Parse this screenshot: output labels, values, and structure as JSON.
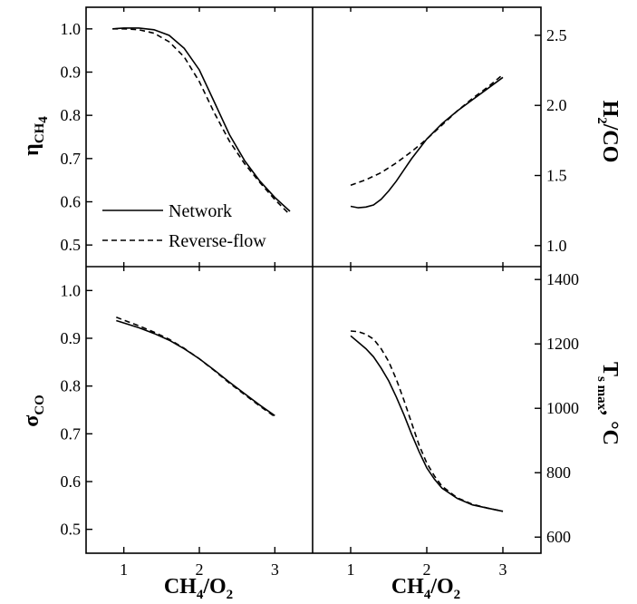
{
  "chart_data": [
    {
      "panel": "top-left",
      "type": "line",
      "ylabel_main": "η",
      "ylabel_sub": "CH",
      "ylabel_sub2": "4",
      "ylim": [
        0.45,
        1.05
      ],
      "yticks": [
        "0.5",
        "0.6",
        "0.7",
        "0.8",
        "0.9",
        "1.0"
      ],
      "series": [
        {
          "name": "Network",
          "style": "solid",
          "x": [
            0.85,
            1.0,
            1.2,
            1.4,
            1.6,
            1.8,
            2.0,
            2.2,
            2.4,
            2.6,
            2.8,
            3.0,
            3.2
          ],
          "y": [
            1.0,
            1.002,
            1.002,
            0.998,
            0.985,
            0.955,
            0.905,
            0.83,
            0.755,
            0.695,
            0.648,
            0.61,
            0.578
          ]
        },
        {
          "name": "Reverse-flow",
          "style": "dashed",
          "x": [
            0.85,
            1.0,
            1.2,
            1.4,
            1.6,
            1.8,
            2.0,
            2.2,
            2.4,
            2.6,
            2.8,
            3.0,
            3.2
          ],
          "y": [
            1.0,
            1.0,
            0.998,
            0.99,
            0.97,
            0.935,
            0.878,
            0.805,
            0.74,
            0.688,
            0.645,
            0.605,
            0.57
          ]
        }
      ],
      "legend": {
        "placement": "bottom-left",
        "entries": [
          "Network",
          "Reverse-flow"
        ]
      }
    },
    {
      "panel": "top-right",
      "type": "line",
      "ylabel_main": "H",
      "ylabel_sub": "2",
      "ylabel_tail": "/CO",
      "ylim": [
        0.85,
        2.7
      ],
      "yticks": [
        "1.0",
        "1.5",
        "2.0",
        "2.5"
      ],
      "series": [
        {
          "name": "Network",
          "style": "solid",
          "x": [
            1.0,
            1.1,
            1.2,
            1.3,
            1.4,
            1.5,
            1.6,
            1.7,
            1.8,
            2.0,
            2.2,
            2.4,
            2.6,
            2.8,
            3.0
          ],
          "y": [
            1.28,
            1.27,
            1.275,
            1.29,
            1.33,
            1.39,
            1.46,
            1.54,
            1.62,
            1.76,
            1.87,
            1.96,
            2.04,
            2.12,
            2.2
          ]
        },
        {
          "name": "Reverse-flow",
          "style": "dashed",
          "x": [
            1.0,
            1.2,
            1.4,
            1.6,
            1.8,
            2.0,
            2.2,
            2.4,
            2.6,
            2.8,
            3.0
          ],
          "y": [
            1.43,
            1.47,
            1.52,
            1.59,
            1.67,
            1.76,
            1.86,
            1.96,
            2.05,
            2.13,
            2.22
          ]
        }
      ]
    },
    {
      "panel": "bottom-left",
      "type": "line",
      "ylabel_main": "σ",
      "ylabel_sub": "CO",
      "ylim": [
        0.45,
        1.05
      ],
      "yticks": [
        "0.5",
        "0.6",
        "0.7",
        "0.8",
        "0.9",
        "1.0"
      ],
      "xticks": [
        "1",
        "2",
        "3"
      ],
      "xlim": [
        0.5,
        3.5
      ],
      "series": [
        {
          "name": "Network",
          "style": "solid",
          "x": [
            0.9,
            1.0,
            1.2,
            1.4,
            1.6,
            1.8,
            2.0,
            2.2,
            2.4,
            2.6,
            2.8,
            3.0
          ],
          "y": [
            0.937,
            0.932,
            0.922,
            0.91,
            0.896,
            0.878,
            0.857,
            0.833,
            0.808,
            0.784,
            0.76,
            0.738
          ]
        },
        {
          "name": "Reverse-flow",
          "style": "dashed",
          "x": [
            0.9,
            1.0,
            1.2,
            1.4,
            1.6,
            1.8,
            2.0,
            2.2,
            2.4,
            2.6,
            2.8,
            3.0
          ],
          "y": [
            0.944,
            0.938,
            0.926,
            0.913,
            0.898,
            0.879,
            0.857,
            0.832,
            0.806,
            0.782,
            0.758,
            0.736
          ]
        }
      ]
    },
    {
      "panel": "bottom-right",
      "type": "line",
      "ylabel_main": "T",
      "ylabel_sub": "s max",
      "ylabel_tail": ", °C",
      "ylim": [
        550,
        1440
      ],
      "yticks": [
        "600",
        "800",
        "1000",
        "1200",
        "1400"
      ],
      "xticks": [
        "1",
        "2",
        "3"
      ],
      "xlim": [
        0.5,
        3.5
      ],
      "series": [
        {
          "name": "Network",
          "style": "solid",
          "x": [
            1.0,
            1.1,
            1.2,
            1.3,
            1.4,
            1.5,
            1.6,
            1.7,
            1.8,
            1.9,
            2.0,
            2.1,
            2.2,
            2.4,
            2.6,
            2.8,
            3.0
          ],
          "y": [
            1225,
            1205,
            1185,
            1160,
            1125,
            1085,
            1035,
            980,
            920,
            865,
            815,
            780,
            752,
            720,
            700,
            690,
            680
          ]
        },
        {
          "name": "Reverse-flow",
          "style": "dashed",
          "x": [
            1.0,
            1.1,
            1.2,
            1.3,
            1.4,
            1.5,
            1.6,
            1.7,
            1.8,
            1.9,
            2.0,
            2.1,
            2.2,
            2.4,
            2.6,
            2.8,
            3.0
          ],
          "y": [
            1240,
            1238,
            1230,
            1215,
            1185,
            1145,
            1090,
            1025,
            955,
            885,
            830,
            790,
            758,
            722,
            702,
            690,
            680
          ]
        }
      ]
    }
  ],
  "xlabel": {
    "main": "CH",
    "sub1": "4",
    "mid": "/O",
    "sub2": "2"
  }
}
